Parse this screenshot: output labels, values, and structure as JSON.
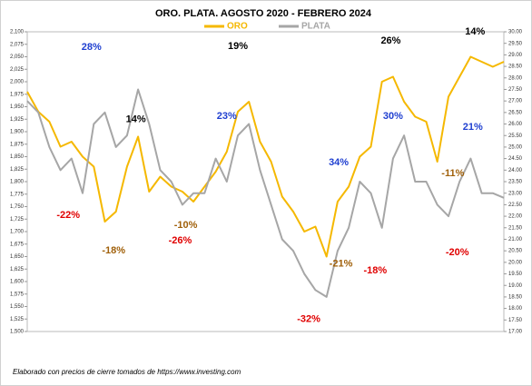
{
  "chart_data": {
    "type": "line",
    "title": "ORO. PLATA. AGOSTO 2020 - FEBRERO 2024",
    "note": "Elaborado con precios de cierre tomados de https://www.investing.com",
    "series": [
      {
        "name": "ORO",
        "color": "#f5b800",
        "axis": "y",
        "values": [
          1980,
          1940,
          1920,
          1870,
          1880,
          1850,
          1830,
          1720,
          1740,
          1830,
          1890,
          1780,
          1810,
          1790,
          1780,
          1760,
          1790,
          1820,
          1860,
          1940,
          1960,
          1880,
          1840,
          1770,
          1740,
          1700,
          1710,
          1650,
          1760,
          1790,
          1850,
          1870,
          2000,
          2010,
          1960,
          1930,
          1920,
          1840,
          1970,
          2010,
          2050,
          2040,
          2030,
          2040
        ]
      },
      {
        "name": "PLATA",
        "color": "#a6a6a6",
        "axis": "y2",
        "values": [
          27.0,
          26.5,
          25,
          24,
          24.5,
          23,
          26,
          26.5,
          25,
          25.5,
          27.5,
          26,
          24,
          23.5,
          22.5,
          23,
          23,
          24.5,
          23.5,
          25.5,
          26,
          24,
          22.5,
          21,
          20.5,
          19.5,
          18.8,
          18.5,
          20.5,
          21.5,
          23.5,
          23,
          21.5,
          24.5,
          25.5,
          23.5,
          23.5,
          22.5,
          22,
          23.5,
          24.5,
          23,
          23,
          22.8
        ]
      }
    ],
    "ylim": [
      1500,
      2100
    ],
    "yticks": [
      {
        "value": 1500,
        "label": "1,500"
      },
      {
        "value": 1525,
        "label": "1,525"
      },
      {
        "value": 1550,
        "label": "1,550"
      },
      {
        "value": 1575,
        "label": "1,575"
      },
      {
        "value": 1600,
        "label": "1,600"
      },
      {
        "value": 1625,
        "label": "1,625"
      },
      {
        "value": 1650,
        "label": "1,650"
      },
      {
        "value": 1675,
        "label": "1,675"
      },
      {
        "value": 1700,
        "label": "1,700"
      },
      {
        "value": 1725,
        "label": "1,725"
      },
      {
        "value": 1750,
        "label": "1,750"
      },
      {
        "value": 1775,
        "label": "1,775"
      },
      {
        "value": 1800,
        "label": "1,800"
      },
      {
        "value": 1825,
        "label": "1,825"
      },
      {
        "value": 1850,
        "label": "1,850"
      },
      {
        "value": 1875,
        "label": "1,875"
      },
      {
        "value": 1900,
        "label": "1,900"
      },
      {
        "value": 1925,
        "label": "1,925"
      },
      {
        "value": 1950,
        "label": "1,950"
      },
      {
        "value": 1975,
        "label": "1,975"
      },
      {
        "value": 2000,
        "label": "2,000"
      },
      {
        "value": 2025,
        "label": "2,025"
      },
      {
        "value": 2050,
        "label": "2,050"
      },
      {
        "value": 2075,
        "label": "2,075"
      },
      {
        "value": 2100,
        "label": "2,100"
      }
    ],
    "y2lim": [
      17,
      30
    ],
    "y2ticks": [
      {
        "value": 17,
        "label": "17.00"
      },
      {
        "value": 17.5,
        "label": "17.50"
      },
      {
        "value": 18,
        "label": "18.00"
      },
      {
        "value": 18.5,
        "label": "18.50"
      },
      {
        "value": 19,
        "label": "19.00"
      },
      {
        "value": 19.5,
        "label": "19.50"
      },
      {
        "value": 20,
        "label": "20.00"
      },
      {
        "value": 20.5,
        "label": "20.50"
      },
      {
        "value": 21,
        "label": "21.00"
      },
      {
        "value": 21.5,
        "label": "21.50"
      },
      {
        "value": 22,
        "label": "22.00"
      },
      {
        "value": 22.5,
        "label": "22.50"
      },
      {
        "value": 23,
        "label": "23.00"
      },
      {
        "value": 23.5,
        "label": "23.50"
      },
      {
        "value": 24,
        "label": "24.00"
      },
      {
        "value": 24.5,
        "label": "24.50"
      },
      {
        "value": 25,
        "label": "25.00"
      },
      {
        "value": 25.5,
        "label": "25.50"
      },
      {
        "value": 26,
        "label": "26.00"
      },
      {
        "value": 26.5,
        "label": "26.50"
      },
      {
        "value": 27,
        "label": "27.00"
      },
      {
        "value": 27.5,
        "label": "27.50"
      },
      {
        "value": 28,
        "label": "28.00"
      },
      {
        "value": 28.5,
        "label": "28.50"
      },
      {
        "value": 29,
        "label": "29.00"
      },
      {
        "value": 29.5,
        "label": "29.50"
      },
      {
        "value": 30,
        "label": "30.00"
      }
    ],
    "grid": false,
    "annotations": [
      {
        "text": "28%",
        "color": "#1f3fd0",
        "x": 5.8,
        "y": 2069
      },
      {
        "text": "14%",
        "color": "#000000",
        "x": 9.8,
        "y": 1924
      },
      {
        "text": "-22%",
        "color": "#e00000",
        "x": 3.7,
        "y": 1733
      },
      {
        "text": "-18%",
        "color": "#a0600a",
        "x": 7.8,
        "y": 1662
      },
      {
        "text": "-10%",
        "color": "#a0600a",
        "x": 14.3,
        "y": 1713
      },
      {
        "text": "-26%",
        "color": "#e00000",
        "x": 13.8,
        "y": 1682
      },
      {
        "text": "19%",
        "color": "#000000",
        "x": 19,
        "y": 2071
      },
      {
        "text": "23%",
        "color": "#1f3fd0",
        "x": 18,
        "y": 1931
      },
      {
        "text": "-32%",
        "color": "#e00000",
        "x": 25.4,
        "y": 1524
      },
      {
        "text": "-21%",
        "color": "#a0600a",
        "x": 28.3,
        "y": 1635
      },
      {
        "text": "34%",
        "color": "#1f3fd0",
        "x": 28.1,
        "y": 1838
      },
      {
        "text": "-18%",
        "color": "#e00000",
        "x": 31.4,
        "y": 1622
      },
      {
        "text": "26%",
        "color": "#000000",
        "x": 32.8,
        "y": 2082
      },
      {
        "text": "30%",
        "color": "#1f3fd0",
        "x": 33,
        "y": 1931
      },
      {
        "text": "-11%",
        "color": "#a0600a",
        "x": 38.4,
        "y": 1816
      },
      {
        "text": "-20%",
        "color": "#e00000",
        "x": 38.8,
        "y": 1658
      },
      {
        "text": "21%",
        "color": "#1f3fd0",
        "x": 40.2,
        "y": 1909
      },
      {
        "text": "14%",
        "color": "#000000",
        "x": 40.4,
        "y": 2100
      }
    ]
  }
}
